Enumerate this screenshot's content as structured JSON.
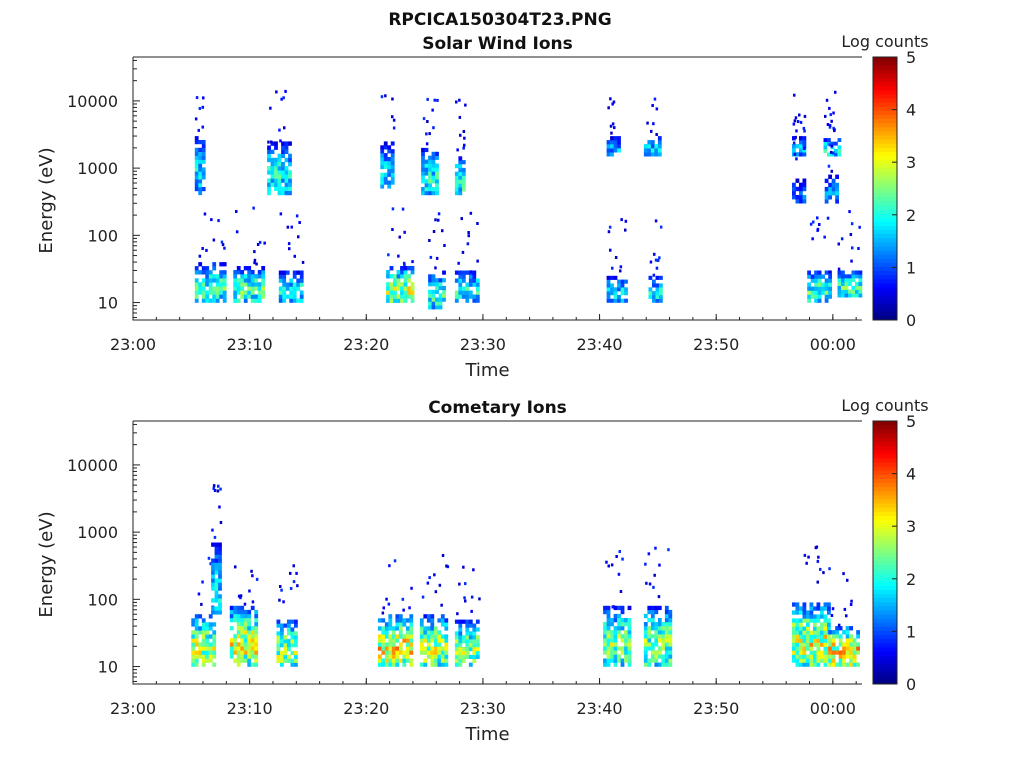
{
  "figure": {
    "title": "RPCICA150304T23.PNG"
  },
  "colormap": {
    "name": "jet",
    "stops": [
      "#00007f",
      "#0000ff",
      "#007fff",
      "#00ffff",
      "#7fff7f",
      "#ffff00",
      "#ff7f00",
      "#ff0000",
      "#7f0000"
    ]
  },
  "chart_data": [
    {
      "type": "heatmap",
      "title": "Solar Wind Ions",
      "xlabel": "Time",
      "ylabel": "Energy (eV)",
      "x_tick_labels": [
        "23:00",
        "23:10",
        "23:20",
        "23:30",
        "23:40",
        "23:50",
        "00:00"
      ],
      "x_ticks_min": [
        0,
        10,
        20,
        30,
        40,
        50,
        60
      ],
      "xlim_min": [
        0,
        62.5
      ],
      "y_scale": "log",
      "y_tick_labels": [
        "10",
        "100",
        "1000",
        "10000"
      ],
      "y_ticks": [
        10,
        100,
        1000,
        10000
      ],
      "ylim": [
        5.5,
        45000
      ],
      "colorbar": {
        "label": "Log counts",
        "ticks": [
          "0",
          "1",
          "2",
          "3",
          "4",
          "5"
        ],
        "range": [
          0,
          5
        ]
      },
      "bursts": [
        {
          "t_start": 5.3,
          "t_end": 7.8,
          "e_low": 10,
          "e_high": 40,
          "peak": 2.2
        },
        {
          "t_start": 8.6,
          "t_end": 11.2,
          "e_low": 10,
          "e_high": 35,
          "peak": 2.3
        },
        {
          "t_start": 12.5,
          "t_end": 14.6,
          "e_low": 10,
          "e_high": 30,
          "peak": 2.0
        },
        {
          "t_start": 5.3,
          "t_end": 6.0,
          "e_low": 400,
          "e_high": 3000,
          "peak": 1.8
        },
        {
          "t_start": 11.5,
          "t_end": 13.5,
          "e_low": 400,
          "e_high": 2500,
          "peak": 2.0
        },
        {
          "t_start": 21.7,
          "t_end": 24.0,
          "e_low": 10,
          "e_high": 35,
          "peak": 2.8
        },
        {
          "t_start": 25.3,
          "t_end": 26.7,
          "e_low": 8,
          "e_high": 30,
          "peak": 2.2
        },
        {
          "t_start": 27.6,
          "t_end": 29.6,
          "e_low": 10,
          "e_high": 30,
          "peak": 2.0
        },
        {
          "t_start": 21.2,
          "t_end": 22.3,
          "e_low": 500,
          "e_high": 2500,
          "peak": 1.8
        },
        {
          "t_start": 24.7,
          "t_end": 26.0,
          "e_low": 400,
          "e_high": 2000,
          "peak": 2.0
        },
        {
          "t_start": 27.6,
          "t_end": 28.4,
          "e_low": 400,
          "e_high": 1500,
          "peak": 2.2
        },
        {
          "t_start": 40.6,
          "t_end": 42.2,
          "e_low": 10,
          "e_high": 25,
          "peak": 1.8
        },
        {
          "t_start": 44.2,
          "t_end": 45.2,
          "e_low": 10,
          "e_high": 25,
          "peak": 1.9
        },
        {
          "t_start": 40.6,
          "t_end": 41.5,
          "e_low": 1500,
          "e_high": 3000,
          "peak": 1.5
        },
        {
          "t_start": 43.8,
          "t_end": 45.0,
          "e_low": 1500,
          "e_high": 3000,
          "peak": 1.7
        },
        {
          "t_start": 57.8,
          "t_end": 59.7,
          "e_low": 10,
          "e_high": 30,
          "peak": 2.3
        },
        {
          "t_start": 60.4,
          "t_end": 62.2,
          "e_low": 12,
          "e_high": 30,
          "peak": 2.3
        },
        {
          "t_start": 56.5,
          "t_end": 57.6,
          "e_low": 1500,
          "e_high": 3000,
          "peak": 1.6
        },
        {
          "t_start": 59.2,
          "t_end": 60.6,
          "e_low": 1500,
          "e_high": 2800,
          "peak": 2.0
        },
        {
          "t_start": 56.5,
          "t_end": 57.6,
          "e_low": 300,
          "e_high": 700,
          "peak": 1.2
        },
        {
          "t_start": 59.3,
          "t_end": 60.2,
          "e_low": 300,
          "e_high": 800,
          "peak": 1.4
        }
      ]
    },
    {
      "type": "heatmap",
      "title": "Cometary Ions",
      "xlabel": "Time",
      "ylabel": "Energy (eV)",
      "x_tick_labels": [
        "23:00",
        "23:10",
        "23:20",
        "23:30",
        "23:40",
        "23:50",
        "00:00"
      ],
      "x_ticks_min": [
        0,
        10,
        20,
        30,
        40,
        50,
        60
      ],
      "xlim_min": [
        0,
        62.5
      ],
      "y_scale": "log",
      "y_tick_labels": [
        "10",
        "100",
        "1000",
        "10000"
      ],
      "y_ticks": [
        10,
        100,
        1000,
        10000
      ],
      "ylim": [
        5.5,
        45000
      ],
      "colorbar": {
        "label": "Log counts",
        "ticks": [
          "0",
          "1",
          "2",
          "3",
          "4",
          "5"
        ],
        "range": [
          0,
          5
        ]
      },
      "bursts": [
        {
          "t_start": 5.0,
          "t_end": 7.0,
          "e_low": 10,
          "e_high": 60,
          "peak": 2.8
        },
        {
          "t_start": 6.7,
          "t_end": 7.5,
          "e_low": 60,
          "e_high": 700,
          "peak": 1.8
        },
        {
          "t_start": 8.3,
          "t_end": 10.6,
          "e_low": 10,
          "e_high": 80,
          "peak": 3.0
        },
        {
          "t_start": 12.3,
          "t_end": 14.0,
          "e_low": 10,
          "e_high": 50,
          "peak": 2.8
        },
        {
          "t_start": 21.0,
          "t_end": 23.9,
          "e_low": 10,
          "e_high": 60,
          "peak": 3.2
        },
        {
          "t_start": 24.6,
          "t_end": 26.9,
          "e_low": 10,
          "e_high": 60,
          "peak": 2.8
        },
        {
          "t_start": 27.6,
          "t_end": 29.7,
          "e_low": 10,
          "e_high": 50,
          "peak": 2.6
        },
        {
          "t_start": 40.3,
          "t_end": 42.5,
          "e_low": 10,
          "e_high": 80,
          "peak": 2.6
        },
        {
          "t_start": 43.8,
          "t_end": 46.0,
          "e_low": 10,
          "e_high": 80,
          "peak": 2.6
        },
        {
          "t_start": 56.5,
          "t_end": 59.5,
          "e_low": 10,
          "e_high": 90,
          "peak": 3.0
        },
        {
          "t_start": 59.6,
          "t_end": 62.2,
          "e_low": 10,
          "e_high": 40,
          "peak": 3.3
        }
      ]
    }
  ]
}
